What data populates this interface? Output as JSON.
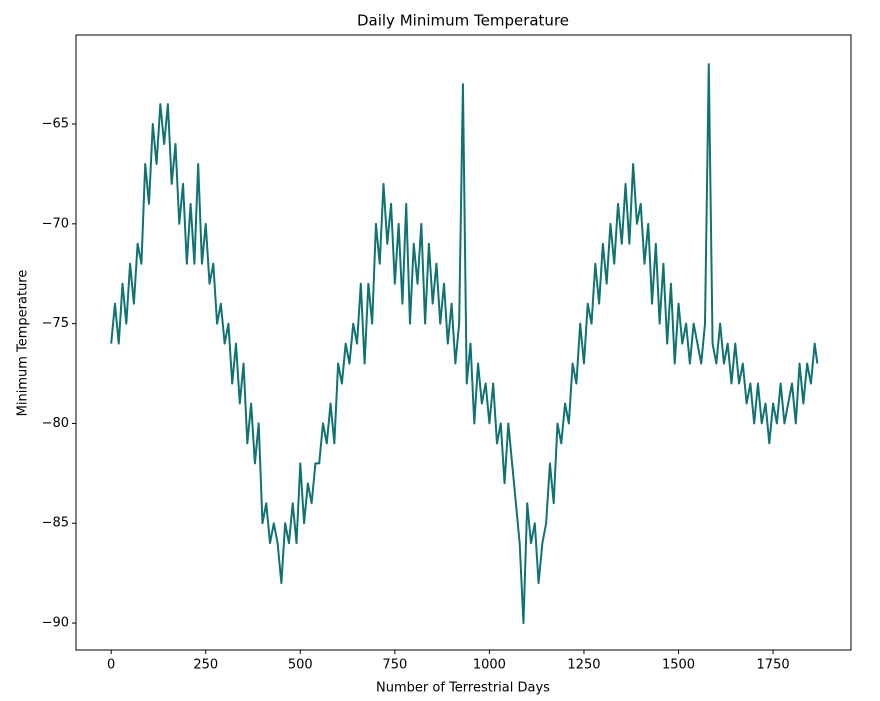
{
  "chart_data": {
    "type": "line",
    "title": "Daily Minimum Temperature",
    "x_label": "Number of Terrestrial Days",
    "y_label": "Minimum Temperature",
    "color": "#107272",
    "x": [
      0,
      10,
      20,
      30,
      40,
      50,
      60,
      70,
      80,
      90,
      100,
      110,
      120,
      130,
      140,
      150,
      160,
      170,
      180,
      190,
      200,
      210,
      220,
      230,
      240,
      250,
      260,
      270,
      280,
      290,
      300,
      310,
      320,
      330,
      340,
      350,
      360,
      370,
      380,
      390,
      400,
      410,
      420,
      430,
      440,
      450,
      460,
      470,
      480,
      490,
      500,
      510,
      520,
      530,
      540,
      550,
      560,
      570,
      580,
      590,
      600,
      610,
      620,
      630,
      640,
      650,
      660,
      670,
      680,
      690,
      700,
      710,
      720,
      730,
      740,
      750,
      760,
      770,
      780,
      790,
      800,
      810,
      820,
      830,
      840,
      850,
      860,
      870,
      880,
      890,
      900,
      910,
      920,
      930,
      940,
      950,
      960,
      970,
      980,
      990,
      1000,
      1010,
      1020,
      1030,
      1040,
      1050,
      1060,
      1070,
      1080,
      1090,
      1100,
      1110,
      1120,
      1130,
      1140,
      1150,
      1160,
      1170,
      1180,
      1190,
      1200,
      1210,
      1220,
      1230,
      1240,
      1250,
      1260,
      1270,
      1280,
      1290,
      1300,
      1310,
      1320,
      1330,
      1340,
      1350,
      1360,
      1370,
      1380,
      1390,
      1400,
      1410,
      1420,
      1430,
      1440,
      1450,
      1460,
      1470,
      1480,
      1490,
      1500,
      1510,
      1520,
      1530,
      1540,
      1550,
      1560,
      1570,
      1580,
      1590,
      1600,
      1610,
      1620,
      1630,
      1640,
      1650,
      1660,
      1670,
      1680,
      1690,
      1700,
      1710,
      1720,
      1730,
      1740,
      1750,
      1760,
      1770,
      1780,
      1790,
      1800,
      1810,
      1820,
      1830,
      1840,
      1850,
      1860,
      1867
    ],
    "values": [
      -76,
      -74,
      -76,
      -73,
      -75,
      -72,
      -74,
      -71,
      -72,
      -67,
      -69,
      -65,
      -67,
      -64,
      -66,
      -64,
      -68,
      -66,
      -70,
      -68,
      -72,
      -69,
      -72,
      -67,
      -72,
      -70,
      -73,
      -72,
      -75,
      -74,
      -76,
      -75,
      -78,
      -76,
      -79,
      -77,
      -81,
      -79,
      -82,
      -80,
      -85,
      -84,
      -86,
      -85,
      -86,
      -88,
      -85,
      -86,
      -84,
      -86,
      -82,
      -85,
      -83,
      -84,
      -82,
      -82,
      -80,
      -81,
      -79,
      -81,
      -77,
      -78,
      -76,
      -77,
      -75,
      -76,
      -73,
      -77,
      -73,
      -75,
      -70,
      -72,
      -68,
      -71,
      -69,
      -73,
      -70,
      -74,
      -69,
      -75,
      -71,
      -73,
      -70,
      -75,
      -71,
      -74,
      -72,
      -75,
      -73,
      -76,
      -74,
      -77,
      -75,
      -63,
      -78,
      -76,
      -80,
      -77,
      -79,
      -78,
      -80,
      -78,
      -81,
      -80,
      -83,
      -80,
      -82,
      -84,
      -86,
      -90,
      -84,
      -86,
      -85,
      -88,
      -86,
      -85,
      -82,
      -84,
      -80,
      -81,
      -79,
      -80,
      -77,
      -78,
      -75,
      -77,
      -74,
      -75,
      -72,
      -74,
      -71,
      -73,
      -70,
      -72,
      -69,
      -71,
      -68,
      -71,
      -67,
      -70,
      -69,
      -72,
      -70,
      -74,
      -71,
      -75,
      -72,
      -76,
      -73,
      -77,
      -74,
      -76,
      -75,
      -77,
      -75,
      -76,
      -77,
      -75,
      -62,
      -76,
      -77,
      -75,
      -77,
      -76,
      -78,
      -76,
      -78,
      -77,
      -79,
      -78,
      -80,
      -78,
      -80,
      -79,
      -81,
      -79,
      -80,
      -78,
      -80,
      -79,
      -78,
      -80,
      -77,
      -79,
      -77,
      -78,
      -76,
      -77
    ],
    "xlim": [
      -93,
      1956
    ],
    "ylim": [
      -91.35,
      -60.54
    ],
    "xticks": [
      0,
      250,
      500,
      750,
      1000,
      1250,
      1500,
      1750
    ],
    "yticks": [
      {
        "value": -90,
        "label": "−90"
      },
      {
        "value": -85,
        "label": "−85"
      },
      {
        "value": -80,
        "label": "−80"
      },
      {
        "value": -75,
        "label": "−75"
      },
      {
        "value": -70,
        "label": "−70"
      },
      {
        "value": -65,
        "label": "−65"
      }
    ]
  }
}
